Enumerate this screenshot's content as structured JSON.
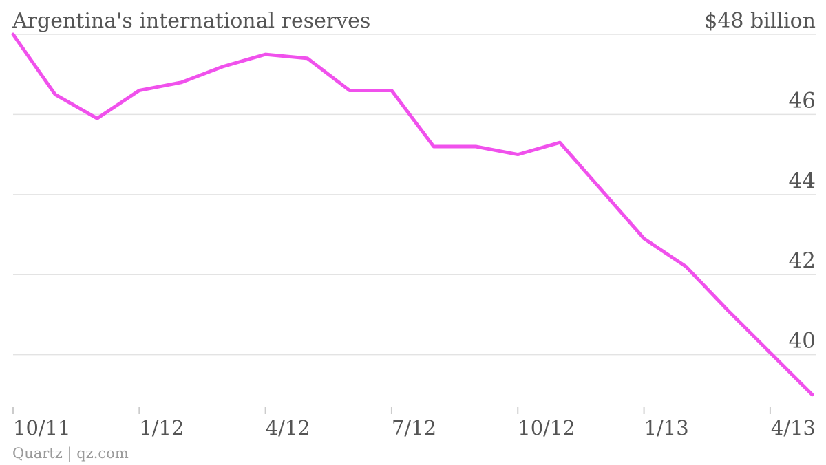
{
  "chart_data": {
    "type": "line",
    "title": "Argentina's international reserves",
    "source": "Quartz | qz.com",
    "y_tick_labels": [
      "40",
      "42",
      "44",
      "46",
      "$48 billion"
    ],
    "y_ticks": [
      40,
      42,
      44,
      46,
      48
    ],
    "ylim": [
      38.98,
      48.0
    ],
    "x_tick_labels": [
      "10/11",
      "1/12",
      "4/12",
      "7/12",
      "10/12",
      "1/13",
      "4/13"
    ],
    "x_ticks": [
      "2011-10",
      "2012-01",
      "2012-04",
      "2012-07",
      "2012-10",
      "2013-01",
      "2013-04"
    ],
    "xlim": [
      "2011-10",
      "2013-05"
    ],
    "grid": true,
    "series": [
      {
        "color": "#f051ec",
        "points": [
          {
            "x": "2011-10",
            "y": 48.0
          },
          {
            "x": "2011-11",
            "y": 46.5
          },
          {
            "x": "2011-12",
            "y": 45.9
          },
          {
            "x": "2012-01",
            "y": 46.6
          },
          {
            "x": "2012-02",
            "y": 46.8
          },
          {
            "x": "2012-03",
            "y": 47.2
          },
          {
            "x": "2012-04",
            "y": 47.5
          },
          {
            "x": "2012-05",
            "y": 47.4
          },
          {
            "x": "2012-06",
            "y": 46.6
          },
          {
            "x": "2012-07",
            "y": 46.6
          },
          {
            "x": "2012-08",
            "y": 45.2
          },
          {
            "x": "2012-09",
            "y": 45.2
          },
          {
            "x": "2012-10",
            "y": 45.0
          },
          {
            "x": "2012-11",
            "y": 45.3
          },
          {
            "x": "2012-12",
            "y": 44.1
          },
          {
            "x": "2013-01",
            "y": 42.9
          },
          {
            "x": "2013-02",
            "y": 42.2
          },
          {
            "x": "2013-03",
            "y": 41.1
          },
          {
            "x": "2013-04",
            "y": 40.05
          },
          {
            "x": "2013-05",
            "y": 39.0
          }
        ]
      }
    ]
  }
}
